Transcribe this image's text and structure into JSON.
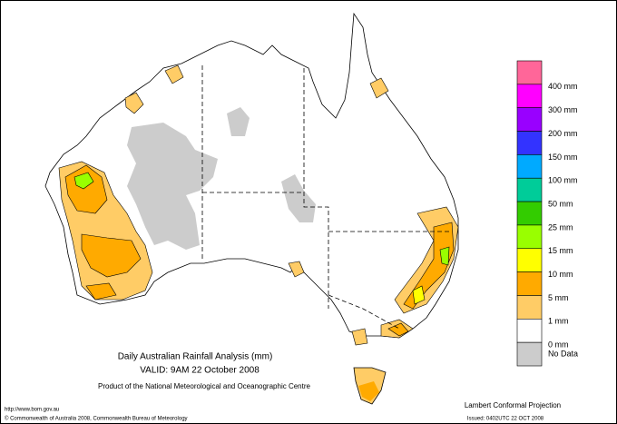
{
  "title": "Daily Australian Rainfall Analysis (mm)",
  "valid": "VALID: 9AM 22 October 2008",
  "product": "Product of the National Meteorological and Oceanographic Centre",
  "footer": {
    "url": "http://www.bom.gov.au",
    "copyright": "© Commonwealth of Australia 2008, Commonwealth Bureau of Meteorology",
    "projection": "Lambert Conformal Projection",
    "issued": "Issued: 0402UTC 22 OCT 2008"
  },
  "legend": {
    "swatches": [
      "#ff6699",
      "#ff00ff",
      "#9900ff",
      "#3333ff",
      "#00aaff",
      "#00cc99",
      "#33cc00",
      "#99ff00",
      "#ffff00",
      "#ffaa00",
      "#ffcc66",
      "#ffffff",
      "#cccccc"
    ],
    "labels": [
      "400 mm",
      "300 mm",
      "200 mm",
      "150 mm",
      "100 mm",
      "50 mm",
      "25 mm",
      "15 mm",
      "10 mm",
      "5 mm",
      "1 mm",
      "0 mm",
      "No Data"
    ]
  }
}
